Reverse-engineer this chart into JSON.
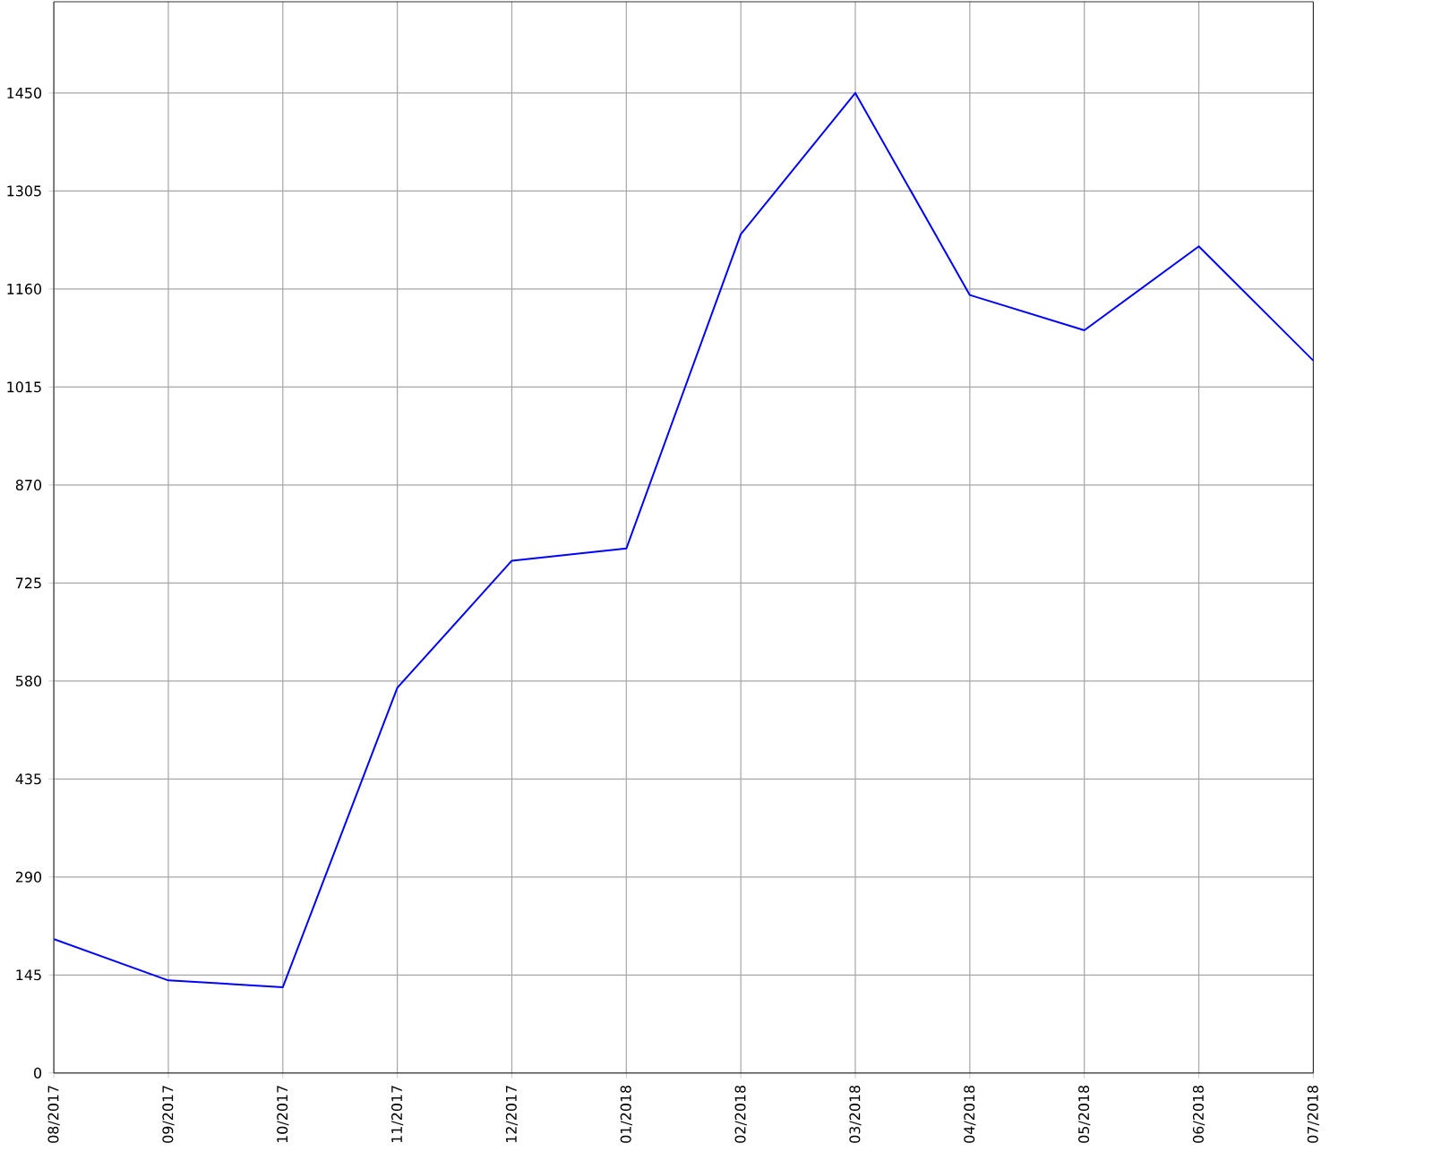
{
  "chart_data": {
    "type": "line",
    "categories": [
      "08/2017",
      "09/2017",
      "10/2017",
      "11/2017",
      "12/2017",
      "01/2018",
      "02/2018",
      "03/2018",
      "04/2018",
      "05/2018",
      "06/2018",
      "07/2018"
    ],
    "series": [
      {
        "color": "#0000ff",
        "values": [
          198,
          137,
          127,
          570,
          758,
          776,
          1241,
          1450,
          1151,
          1099,
          1223,
          1054
        ]
      }
    ],
    "ylim": [
      0,
      1585
    ],
    "yticks": [
      0,
      145,
      290,
      435,
      580,
      725,
      870,
      1015,
      1160,
      1305,
      1450
    ],
    "grid": true,
    "marker": "none",
    "line_style": "solid"
  }
}
